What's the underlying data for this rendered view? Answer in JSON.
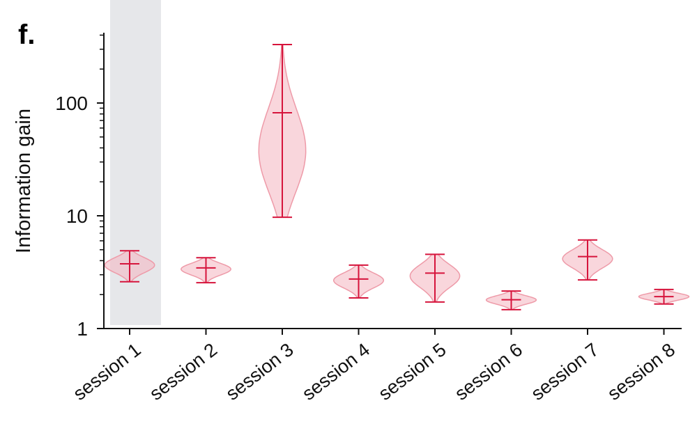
{
  "panel_label": "f.",
  "chart_data": {
    "type": "violin",
    "ylabel": "Information gain",
    "yscale": "log",
    "ylim": [
      1,
      400
    ],
    "yticks": [
      {
        "value": 1,
        "label": "1"
      },
      {
        "value": 10,
        "label": "10"
      },
      {
        "value": 100,
        "label": "100"
      }
    ],
    "categories": [
      "session 1",
      "session 2",
      "session 3",
      "session 4",
      "session 5",
      "session 6",
      "session 7",
      "session 8"
    ],
    "highlighted_category": "session 1",
    "colors": {
      "whisker": "#d6143c",
      "violin_fill": "#f4b5bf",
      "violin_stroke": "#ee9aa8",
      "highlight_band": "#e6e7ea",
      "axis": "#111111"
    },
    "series": [
      {
        "category": "session 1",
        "min": 2.6,
        "median": 3.75,
        "max": 4.9,
        "density_peak": 3.7,
        "spread": 0.3
      },
      {
        "category": "session 2",
        "min": 2.55,
        "median": 3.45,
        "max": 4.25,
        "density_peak": 3.4,
        "spread": 0.28
      },
      {
        "category": "session 3",
        "min": 9.7,
        "median": 82,
        "max": 330,
        "density_peak": 30,
        "spread": 0.3
      },
      {
        "category": "session 4",
        "min": 1.87,
        "median": 2.75,
        "max": 3.65,
        "density_peak": 2.7,
        "spread": 0.28
      },
      {
        "category": "session 5",
        "min": 1.72,
        "median": 3.1,
        "max": 4.55,
        "density_peak": 3.0,
        "spread": 0.3
      },
      {
        "category": "session 6",
        "min": 1.47,
        "median": 1.8,
        "max": 2.15,
        "density_peak": 1.8,
        "spread": 0.27
      },
      {
        "category": "session 7",
        "min": 2.7,
        "median": 4.35,
        "max": 6.1,
        "density_peak": 4.2,
        "spread": 0.28
      },
      {
        "category": "session 8",
        "min": 1.65,
        "median": 1.92,
        "max": 2.22,
        "density_peak": 1.92,
        "spread": 0.28
      }
    ]
  }
}
